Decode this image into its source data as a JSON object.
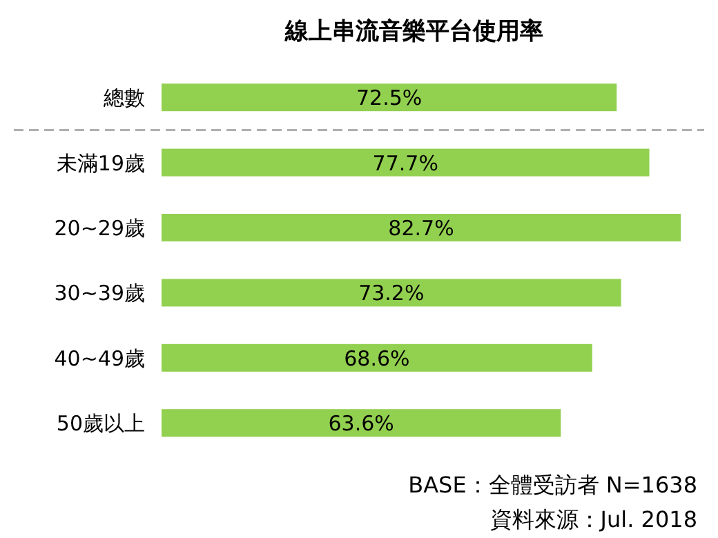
{
  "chart_data": {
    "type": "bar",
    "orientation": "horizontal",
    "title": "線上串流音樂平台使用率",
    "categories": [
      "總數",
      "未滿19歲",
      "20~29歲",
      "30~39歲",
      "40~49歲",
      "50歲以上"
    ],
    "values": [
      72.5,
      77.7,
      82.7,
      73.2,
      68.6,
      63.6
    ],
    "value_labels": [
      "72.5%",
      "77.7%",
      "82.7%",
      "73.2%",
      "68.6%",
      "63.6%"
    ],
    "color": "#92d050",
    "annotations": [
      "BASE：全體受訪者 N=1638",
      "資料來源：Jul. 2018"
    ]
  }
}
